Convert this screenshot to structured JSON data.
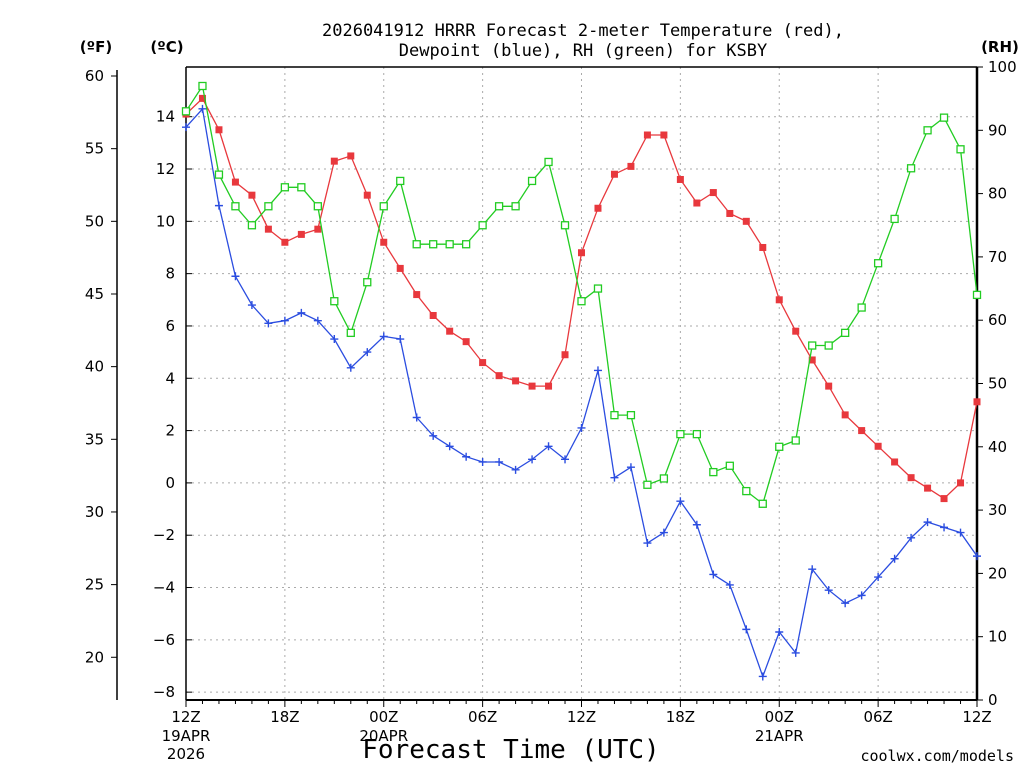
{
  "chart_data": {
    "type": "line",
    "title_line1": "2026041912 HRRR Forecast 2-meter Temperature (red),",
    "title_line2": "Dewpoint (blue), RH (green) for KSBY",
    "xlabel": "Forecast Time (UTC)",
    "watermark": "coolwx.com/models",
    "axis_labels": {
      "fahrenheit": "(ºF)",
      "celsius": "(ºC)",
      "rh": "(RH)"
    },
    "x_range": [
      0,
      48
    ],
    "x_ticks": [
      {
        "hour": 0,
        "label": "12Z"
      },
      {
        "hour": 6,
        "label": "18Z"
      },
      {
        "hour": 12,
        "label": "00Z"
      },
      {
        "hour": 18,
        "label": "06Z"
      },
      {
        "hour": 24,
        "label": "12Z"
      },
      {
        "hour": 30,
        "label": "18Z"
      },
      {
        "hour": 36,
        "label": "00Z"
      },
      {
        "hour": 42,
        "label": "06Z"
      },
      {
        "hour": 48,
        "label": "12Z"
      }
    ],
    "date_labels": [
      {
        "hour": 0,
        "lines": [
          "19APR",
          "2026"
        ]
      },
      {
        "hour": 12,
        "lines": [
          "20APR"
        ]
      },
      {
        "hour": 36,
        "lines": [
          "21APR"
        ]
      }
    ],
    "celsius_range": [
      -8.3,
      15.9
    ],
    "celsius_ticks": [
      14,
      12,
      10,
      8,
      6,
      4,
      2,
      0,
      -2,
      -4,
      -6,
      -8
    ],
    "fahrenheit_ticks": [
      60,
      55,
      50,
      45,
      40,
      35,
      30,
      25,
      20
    ],
    "rh_range": [
      0,
      100
    ],
    "rh_ticks": [
      100,
      90,
      80,
      70,
      60,
      50,
      40,
      30,
      20,
      10,
      0
    ],
    "colors": {
      "temperature": "#e8383d",
      "dewpoint": "#2b4de0",
      "rh": "#22cc22",
      "grid": "#aaaaaa",
      "watermark": "#e8383d"
    },
    "series": [
      {
        "name": "Temperature",
        "units": "C",
        "values": [
          14.1,
          14.7,
          13.5,
          11.5,
          11.0,
          9.7,
          9.2,
          9.5,
          9.7,
          12.3,
          12.5,
          11.0,
          9.2,
          8.2,
          7.2,
          6.4,
          5.8,
          5.4,
          4.6,
          4.1,
          3.9,
          3.7,
          3.7,
          4.9,
          8.8,
          10.5,
          11.8,
          12.1,
          13.3,
          13.3,
          11.6,
          10.7,
          11.1,
          10.3,
          10.0,
          9.0,
          7.0,
          5.8,
          4.7,
          3.7,
          2.6,
          2.0,
          1.4,
          0.8,
          0.2,
          -0.2,
          -0.6,
          0.0,
          3.1
        ]
      },
      {
        "name": "Dewpoint",
        "units": "C",
        "values": [
          13.6,
          14.3,
          10.6,
          7.9,
          6.8,
          6.1,
          6.2,
          6.5,
          6.2,
          5.5,
          4.4,
          5.0,
          5.6,
          5.5,
          2.5,
          1.8,
          1.4,
          1.0,
          0.8,
          0.8,
          0.5,
          0.9,
          1.4,
          0.9,
          2.1,
          4.3,
          0.2,
          0.6,
          -2.3,
          -1.9,
          -0.7,
          -1.6,
          -3.5,
          -3.9,
          -5.6,
          -7.4,
          -5.7,
          -6.5,
          -3.3,
          -4.1,
          -4.6,
          -4.3,
          -3.6,
          -2.9,
          -2.1,
          -1.5,
          -1.7,
          -1.9,
          -2.8
        ]
      },
      {
        "name": "RH",
        "units": "%",
        "values": [
          93,
          97,
          83,
          78,
          75,
          78,
          81,
          81,
          78,
          63,
          58,
          66,
          78,
          82,
          72,
          72,
          72,
          72,
          75,
          78,
          78,
          82,
          85,
          75,
          63,
          65,
          45,
          45,
          34,
          35,
          42,
          42,
          36,
          37,
          33,
          31,
          40,
          41,
          56,
          56,
          58,
          62,
          69,
          76,
          84,
          90,
          92,
          87,
          64
        ]
      }
    ]
  }
}
